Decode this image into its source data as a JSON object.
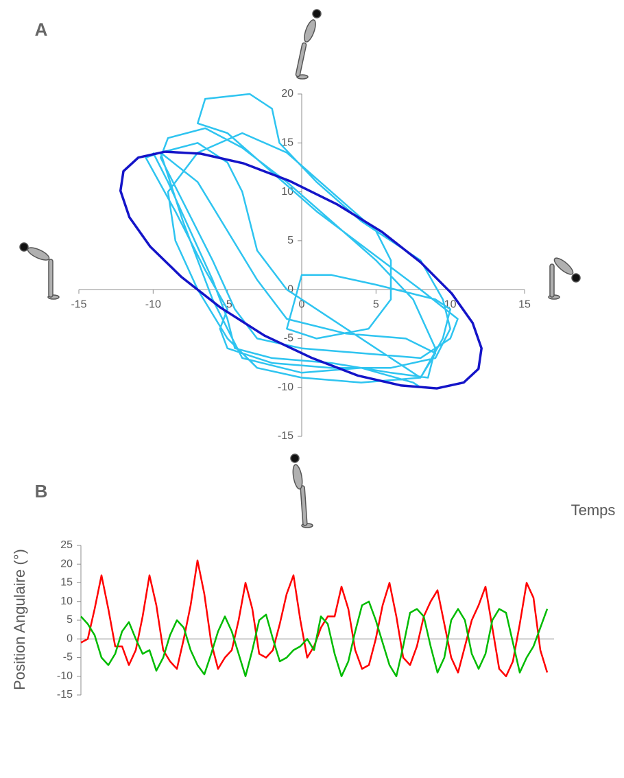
{
  "chart_data": [
    {
      "type": "line",
      "panel": "A",
      "xlim": [
        -15,
        15
      ],
      "ylim": [
        -15,
        20
      ],
      "xticks": [
        -15,
        -10,
        -5,
        0,
        5,
        10,
        15
      ],
      "yticks": [
        -15,
        -10,
        -5,
        0,
        5,
        10,
        15,
        20
      ],
      "series": [
        {
          "color": "#2ec4f0",
          "x": [
            -10,
            -9,
            -7.5,
            -6,
            -5,
            -4.5,
            -2,
            2,
            6,
            8.5,
            9,
            7.5,
            5,
            2,
            -1,
            -4,
            -6.5,
            -9,
            -9.5,
            -8,
            -6,
            -4.5,
            -3,
            0,
            4,
            8,
            10,
            10.5,
            8,
            4.5,
            1,
            -2,
            -5,
            -7,
            -6.5,
            -3.5,
            -2,
            -1.5,
            1,
            4,
            8,
            9.5,
            10,
            9,
            6,
            2,
            -2,
            -5,
            -5.5,
            -5,
            -6.5,
            -8.5,
            -10.5,
            -9.5,
            -7,
            -5,
            -3,
            -1,
            3,
            7,
            9,
            8,
            4,
            0,
            -3,
            -5,
            -7,
            -8.5,
            -9,
            -7,
            -4,
            -1,
            2,
            5,
            6,
            6,
            4.5,
            1,
            -1,
            0,
            2,
            5,
            9,
            10,
            9.5,
            8,
            7,
            5,
            2,
            -1,
            -3,
            -4,
            -5,
            -7,
            -9.5,
            -8,
            -6,
            -4,
            0,
            4,
            7.5,
            8
          ],
          "values": [
            14,
            11,
            6,
            1,
            -3,
            -6,
            -7,
            -7.5,
            -8.5,
            -9,
            -6,
            -1,
            3,
            7,
            11,
            14.5,
            16.5,
            15.5,
            13.5,
            9,
            3,
            -2,
            -5,
            -6,
            -6.5,
            -7,
            -5,
            -3,
            0,
            4,
            8,
            12,
            16,
            17,
            19.5,
            20,
            18.5,
            15,
            11,
            7,
            3,
            -1,
            -4,
            -7,
            -8,
            -8,
            -7.5,
            -6,
            -4,
            -2,
            2,
            8,
            13.5,
            14,
            11,
            6,
            1,
            -3,
            -4.5,
            -5,
            -6.5,
            -9,
            -9.5,
            -9,
            -8,
            -5,
            0,
            5,
            10,
            14,
            16,
            14,
            10,
            6,
            3,
            -1,
            -4,
            -5,
            -4,
            1.5,
            1.5,
            0.5,
            -1,
            -2,
            -5,
            -9,
            -8,
            -6,
            -3,
            0,
            4,
            10,
            13,
            15,
            14,
            7,
            -1,
            -7,
            -8.5,
            -8,
            -9.5,
            -10
          ]
        },
        {
          "color": "#1414c8",
          "closed": true,
          "x": [
            11.9,
            10.9,
            9.1,
            6.7,
            3.8,
            0.7,
            -2.5,
            -5.5,
            -8.1,
            -10.2,
            -11.6,
            -12.2,
            -12,
            -11,
            -9.2,
            -6.8,
            -3.9,
            -0.8,
            2.4,
            5.4,
            8,
            10.1,
            11.5,
            12.1
          ],
          "values": [
            -8.1,
            -9.5,
            -10.1,
            -9.8,
            -8.8,
            -7,
            -4.7,
            -1.8,
            1.3,
            4.4,
            7.4,
            10.1,
            12.1,
            13.5,
            14.1,
            13.9,
            12.9,
            11.1,
            8.7,
            5.9,
            2.8,
            -0.4,
            -3.4,
            -6
          ]
        }
      ]
    },
    {
      "type": "line",
      "panel": "B",
      "x_label": "Temps",
      "y_label": "Position Angulaire (°)",
      "ylim": [
        -15,
        25
      ],
      "yticks": [
        -15,
        -10,
        -5,
        0,
        5,
        10,
        15,
        20,
        25
      ],
      "series": [
        {
          "color": "#ff0000",
          "values": [
            -1,
            0,
            8,
            17,
            8,
            -2,
            -2,
            -7,
            -3,
            6,
            17,
            9,
            -3,
            -6,
            -8,
            0,
            9,
            21,
            12,
            -1,
            -8,
            -5,
            -3,
            5,
            15,
            8,
            -4,
            -5,
            -3,
            4,
            12,
            17,
            5,
            -5,
            -2,
            3,
            6,
            6,
            14,
            8,
            -3,
            -8,
            -7,
            0,
            9,
            15,
            6,
            -5,
            -7,
            -2,
            6,
            10,
            13,
            4,
            -5,
            -9,
            -2,
            5,
            9,
            14,
            3,
            -8,
            -10,
            -6,
            4,
            15,
            11,
            -3,
            -9
          ]
        },
        {
          "color": "#00bb00",
          "values": [
            6,
            4,
            1,
            -5,
            -7,
            -4,
            2,
            4.5,
            0,
            -4,
            -3,
            -8.5,
            -5,
            1,
            5,
            3,
            -3,
            -7,
            -9.5,
            -4,
            2,
            6,
            2,
            -4,
            -10,
            -3,
            5,
            6.5,
            0,
            -6,
            -5,
            -3,
            -2,
            0,
            -3,
            6,
            4,
            -4,
            -10,
            -6,
            2,
            9,
            10,
            5,
            -1,
            -7,
            -10,
            -2,
            7,
            8,
            6,
            -2,
            -9,
            -5,
            5,
            8,
            5,
            -4,
            -8,
            -4,
            5,
            8,
            7,
            -1,
            -9,
            -5,
            -2,
            3,
            8
          ]
        }
      ]
    }
  ]
}
